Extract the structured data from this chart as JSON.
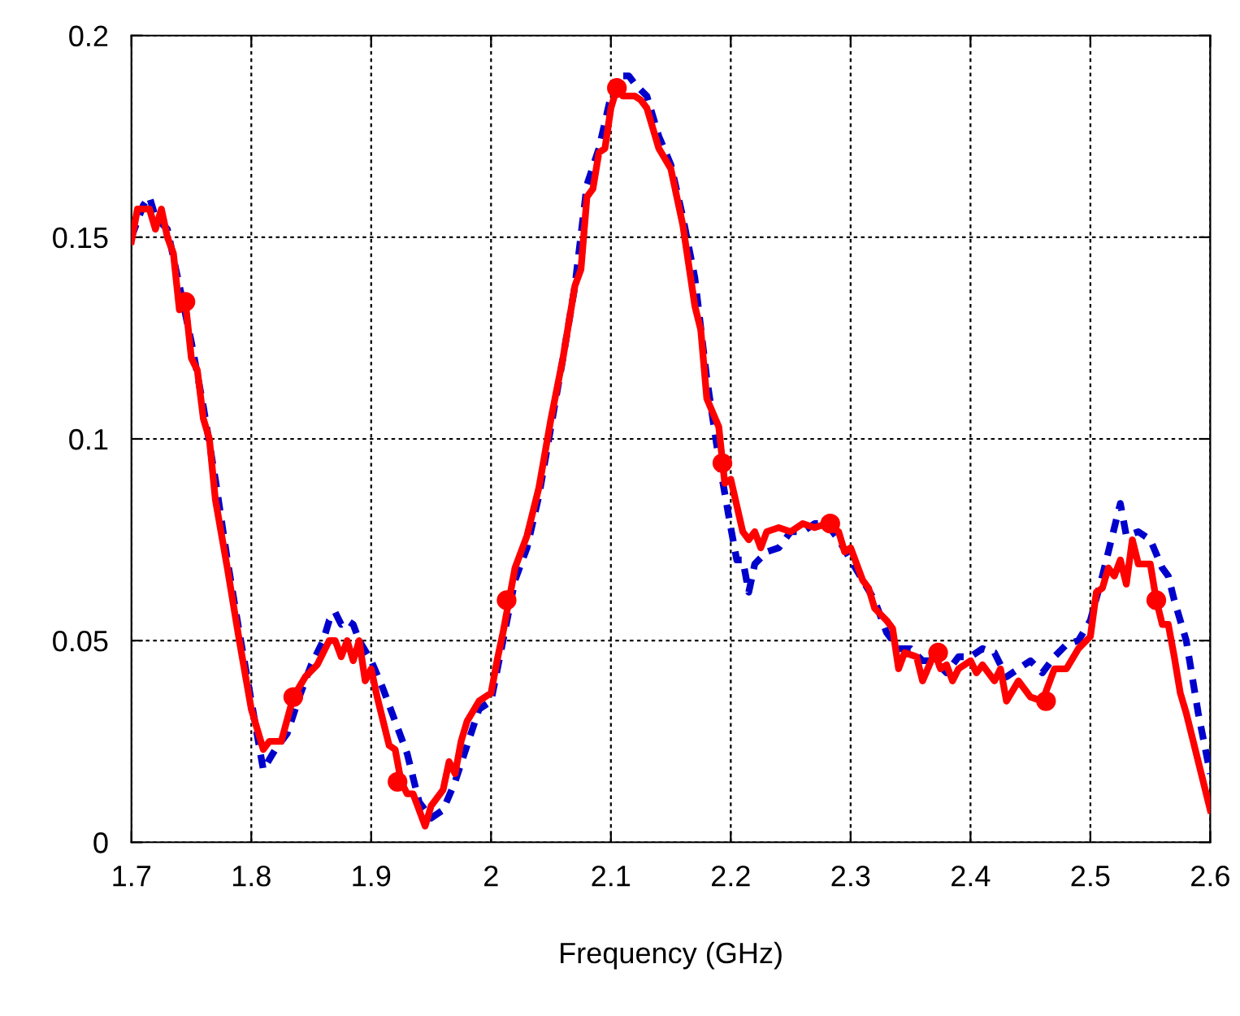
{
  "chart_data": {
    "type": "line",
    "xlabel": "Frequency (GHz)",
    "xlim": [
      1.7,
      2.6
    ],
    "ylim": [
      0,
      0.2
    ],
    "xticks": [
      1.7,
      1.8,
      1.9,
      2,
      2.1,
      2.2,
      2.3,
      2.4,
      2.5,
      2.6
    ],
    "yticks": [
      0,
      0.05,
      0.1,
      0.15,
      0.2
    ],
    "grid": true,
    "legend": false,
    "series": [
      {
        "color": "#0000cc",
        "line_style": "dashed",
        "marker": "none",
        "x": [
          1.7,
          1.71,
          1.715,
          1.72,
          1.73,
          1.74,
          1.75,
          1.76,
          1.77,
          1.78,
          1.79,
          1.8,
          1.81,
          1.82,
          1.83,
          1.84,
          1.85,
          1.86,
          1.865,
          1.87,
          1.875,
          1.88,
          1.885,
          1.89,
          1.9,
          1.91,
          1.92,
          1.925,
          1.93,
          1.94,
          1.95,
          1.96,
          1.97,
          1.98,
          1.99,
          2.0,
          2.01,
          2.02,
          2.03,
          2.04,
          2.05,
          2.06,
          2.07,
          2.08,
          2.09,
          2.1,
          2.105,
          2.115,
          2.12,
          2.13,
          2.14,
          2.15,
          2.16,
          2.17,
          2.18,
          2.19,
          2.2,
          2.205,
          2.21,
          2.215,
          2.22,
          2.23,
          2.24,
          2.25,
          2.26,
          2.27,
          2.28,
          2.29,
          2.3,
          2.31,
          2.32,
          2.33,
          2.34,
          2.35,
          2.36,
          2.37,
          2.38,
          2.39,
          2.4,
          2.41,
          2.42,
          2.43,
          2.44,
          2.45,
          2.46,
          2.47,
          2.48,
          2.49,
          2.5,
          2.51,
          2.52,
          2.525,
          2.53,
          2.54,
          2.55,
          2.56,
          2.565,
          2.57,
          2.58,
          2.59,
          2.6
        ],
        "values": [
          0.15,
          0.158,
          0.16,
          0.155,
          0.152,
          0.138,
          0.124,
          0.108,
          0.09,
          0.07,
          0.052,
          0.035,
          0.018,
          0.023,
          0.027,
          0.036,
          0.044,
          0.05,
          0.055,
          0.057,
          0.054,
          0.055,
          0.054,
          0.05,
          0.045,
          0.038,
          0.03,
          0.026,
          0.022,
          0.01,
          0.006,
          0.008,
          0.015,
          0.024,
          0.033,
          0.035,
          0.05,
          0.065,
          0.073,
          0.086,
          0.103,
          0.12,
          0.138,
          0.163,
          0.172,
          0.185,
          0.19,
          0.19,
          0.188,
          0.185,
          0.175,
          0.168,
          0.155,
          0.14,
          0.115,
          0.095,
          0.078,
          0.07,
          0.07,
          0.062,
          0.069,
          0.072,
          0.073,
          0.077,
          0.077,
          0.079,
          0.079,
          0.075,
          0.07,
          0.065,
          0.06,
          0.052,
          0.048,
          0.048,
          0.045,
          0.045,
          0.042,
          0.046,
          0.046,
          0.048,
          0.047,
          0.041,
          0.043,
          0.045,
          0.042,
          0.046,
          0.049,
          0.05,
          0.055,
          0.066,
          0.078,
          0.084,
          0.076,
          0.077,
          0.075,
          0.068,
          0.066,
          0.06,
          0.05,
          0.032,
          0.017
        ]
      },
      {
        "color": "#ff0000",
        "line_style": "solid",
        "marker": "none",
        "x": [
          1.7,
          1.705,
          1.715,
          1.72,
          1.725,
          1.73,
          1.735,
          1.74,
          1.745,
          1.75,
          1.755,
          1.76,
          1.765,
          1.77,
          1.78,
          1.79,
          1.8,
          1.81,
          1.815,
          1.825,
          1.835,
          1.845,
          1.855,
          1.865,
          1.87,
          1.875,
          1.88,
          1.885,
          1.89,
          1.895,
          1.9,
          1.905,
          1.91,
          1.915,
          1.92,
          1.925,
          1.93,
          1.935,
          1.945,
          1.95,
          1.96,
          1.965,
          1.97,
          1.975,
          1.98,
          1.99,
          2.0,
          2.005,
          2.01,
          2.015,
          2.02,
          2.03,
          2.04,
          2.05,
          2.06,
          2.07,
          2.075,
          2.08,
          2.085,
          2.09,
          2.095,
          2.1,
          2.105,
          2.11,
          2.12,
          2.125,
          2.13,
          2.14,
          2.15,
          2.16,
          2.17,
          2.175,
          2.18,
          2.19,
          2.195,
          2.2,
          2.21,
          2.215,
          2.22,
          2.225,
          2.23,
          2.24,
          2.25,
          2.26,
          2.27,
          2.28,
          2.29,
          2.295,
          2.3,
          2.31,
          2.315,
          2.32,
          2.33,
          2.335,
          2.34,
          2.345,
          2.355,
          2.36,
          2.37,
          2.375,
          2.38,
          2.385,
          2.39,
          2.4,
          2.405,
          2.41,
          2.42,
          2.425,
          2.43,
          2.44,
          2.45,
          2.46,
          2.47,
          2.48,
          2.49,
          2.5,
          2.505,
          2.51,
          2.515,
          2.52,
          2.525,
          2.53,
          2.535,
          2.54,
          2.55,
          2.555,
          2.56,
          2.565,
          2.57,
          2.575,
          2.58,
          2.59,
          2.6
        ],
        "values": [
          0.149,
          0.157,
          0.157,
          0.152,
          0.157,
          0.15,
          0.146,
          0.132,
          0.134,
          0.12,
          0.117,
          0.105,
          0.1,
          0.085,
          0.068,
          0.05,
          0.033,
          0.023,
          0.025,
          0.025,
          0.036,
          0.041,
          0.044,
          0.05,
          0.05,
          0.046,
          0.05,
          0.045,
          0.05,
          0.04,
          0.043,
          0.036,
          0.03,
          0.024,
          0.023,
          0.015,
          0.012,
          0.012,
          0.004,
          0.009,
          0.013,
          0.02,
          0.017,
          0.025,
          0.03,
          0.035,
          0.037,
          0.045,
          0.052,
          0.06,
          0.068,
          0.076,
          0.088,
          0.105,
          0.12,
          0.138,
          0.142,
          0.16,
          0.162,
          0.171,
          0.172,
          0.182,
          0.187,
          0.185,
          0.185,
          0.184,
          0.182,
          0.172,
          0.167,
          0.153,
          0.133,
          0.127,
          0.11,
          0.103,
          0.089,
          0.09,
          0.077,
          0.075,
          0.077,
          0.073,
          0.077,
          0.078,
          0.077,
          0.079,
          0.078,
          0.079,
          0.077,
          0.072,
          0.073,
          0.065,
          0.063,
          0.058,
          0.055,
          0.053,
          0.043,
          0.047,
          0.046,
          0.04,
          0.047,
          0.043,
          0.044,
          0.04,
          0.043,
          0.045,
          0.042,
          0.044,
          0.04,
          0.043,
          0.035,
          0.04,
          0.036,
          0.035,
          0.043,
          0.043,
          0.048,
          0.051,
          0.062,
          0.063,
          0.068,
          0.066,
          0.07,
          0.064,
          0.075,
          0.069,
          0.069,
          0.06,
          0.054,
          0.054,
          0.046,
          0.037,
          0.032,
          0.02,
          0.008
        ]
      },
      {
        "type": "scatter",
        "color": "#ff0000",
        "marker": "circle",
        "x": [
          1.745,
          1.835,
          1.922,
          2.013,
          2.105,
          2.193,
          2.283,
          2.373,
          2.463,
          2.555
        ],
        "values": [
          0.134,
          0.036,
          0.015,
          0.06,
          0.187,
          0.094,
          0.079,
          0.047,
          0.035,
          0.06
        ]
      }
    ]
  }
}
